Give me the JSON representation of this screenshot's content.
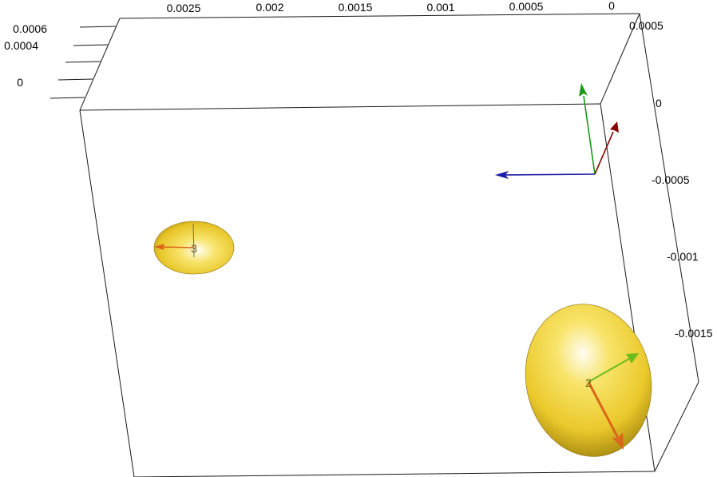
{
  "axes": {
    "top_ticks": [
      "0.0025",
      "0.002",
      "0.0015",
      "0.001",
      "0.0005",
      "0"
    ],
    "left_ticks": [
      "0.0006",
      "0.0004",
      "0"
    ],
    "right_ticks": [
      "0.0005",
      "0",
      "-0.0005",
      "-0.001",
      "-0.0015"
    ]
  },
  "ellipsoids": [
    {
      "label": "3",
      "color": "#f3d23a"
    },
    {
      "label": "2",
      "color": "#f3d23a"
    }
  ],
  "triad_colors": {
    "x": "#8b0000",
    "y": "#1a9a1a",
    "z": "#1a1aa8"
  },
  "arrow_colors": {
    "primary": "#d9661a",
    "secondary": "#6cbb1a"
  }
}
